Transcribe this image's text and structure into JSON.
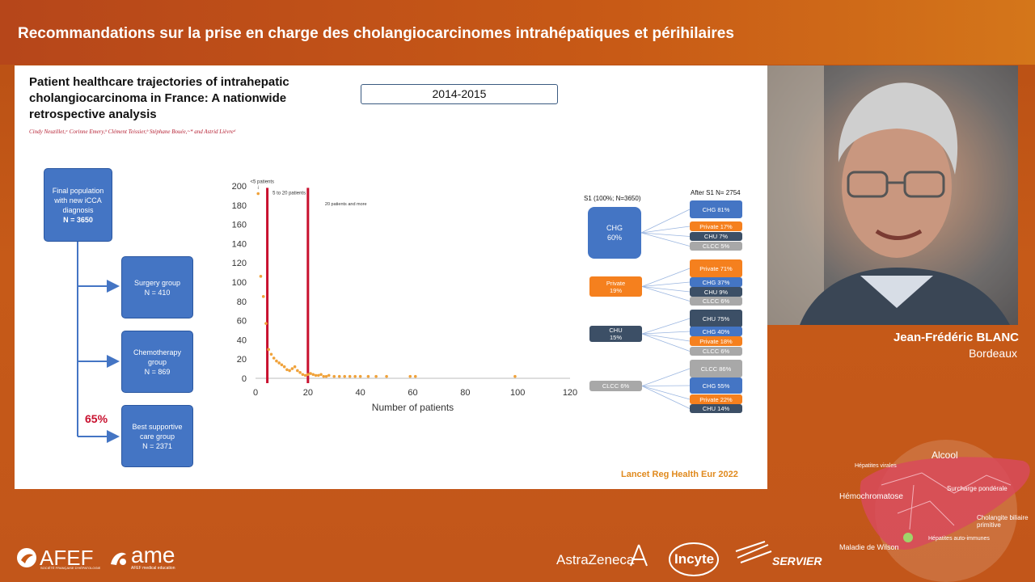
{
  "header": {
    "title": "Recommandations sur la prise en charge des cholangiocarcinomes intrahépatiques et périhilaires"
  },
  "slide": {
    "paper_title": "Patient healthcare trajectories of intrahepatic cholangiocarcinoma in France: A nationwide retrospective analysis",
    "authors": "Cindy Neuzillet,ᵃ Corinne Emery,ᵇ Clément Teissier,ᵇ Stéphane Bouée,ᶜ·* and Astrid Lièvreᵈ",
    "period": "2014-2015",
    "reference": "Lancet Reg Health Eur 2022",
    "flowchart": {
      "root": {
        "line1": "Final population",
        "line2": "with new iCCA",
        "line3": "diagnosis",
        "n": "N = 3650"
      },
      "groups": [
        {
          "name": "Surgery group",
          "n": "N = 410"
        },
        {
          "name": "Chemotherapy group",
          "n": "N = 869"
        },
        {
          "name": "Best supportive care group",
          "n": "N = 2371"
        }
      ],
      "bsc_percent": "65%"
    },
    "sankey": {
      "left_header": "S1 (100%; N=3650)",
      "right_header": "After S1 N= 2754",
      "sources": [
        {
          "name": "CHG",
          "pct": "60%",
          "targets": [
            {
              "label": "CHG 81%",
              "color": "#4475c4"
            },
            {
              "label": "Private 17%",
              "color": "#f5801e"
            },
            {
              "label": "CHU 7%",
              "color": "#3c4f66"
            },
            {
              "label": "CLCC   5%",
              "color": "#a8a8a8"
            }
          ]
        },
        {
          "name": "Private",
          "pct": "19%",
          "targets": [
            {
              "label": "Private 71%",
              "color": "#f5801e"
            },
            {
              "label": "CHG 37%",
              "color": "#4475c4"
            },
            {
              "label": "CHU 9%",
              "color": "#3c4f66"
            },
            {
              "label": "CLCC 6%",
              "color": "#a8a8a8"
            }
          ]
        },
        {
          "name": "CHU",
          "pct": "15%",
          "targets": [
            {
              "label": "CHU 75%",
              "color": "#3c4f66"
            },
            {
              "label": "CHG 40%",
              "color": "#4475c4"
            },
            {
              "label": "Private 18%",
              "color": "#f5801e"
            },
            {
              "label": "CLCC 6%",
              "color": "#a8a8a8"
            }
          ]
        },
        {
          "name": "CLCC 6%",
          "pct": "",
          "targets": [
            {
              "label": "CLCC 86%",
              "color": "#a8a8a8"
            },
            {
              "label": "CHG 55%",
              "color": "#4475c4"
            },
            {
              "label": "Private 22%",
              "color": "#f5801e"
            },
            {
              "label": "CHU 14%",
              "color": "#3c4f66"
            }
          ]
        }
      ]
    }
  },
  "chart_data": {
    "type": "scatter",
    "xlabel": "Number of patients",
    "ylabel": "",
    "xlim": [
      0,
      120
    ],
    "ylim": [
      0,
      200
    ],
    "xticks": [
      0,
      20,
      40,
      60,
      80,
      100,
      120
    ],
    "yticks": [
      0,
      20,
      40,
      60,
      80,
      100,
      120,
      140,
      160,
      180,
      200
    ],
    "color": "#f0a23a",
    "thresholds": [
      {
        "x": 4.5,
        "label": "<5 patients"
      },
      {
        "x": 20,
        "label": "5 to 20 patients"
      }
    ],
    "annotation": "20 patients and more",
    "points": [
      [
        1,
        192
      ],
      [
        2,
        106
      ],
      [
        3,
        85
      ],
      [
        4,
        57
      ],
      [
        5,
        30
      ],
      [
        6,
        25
      ],
      [
        7,
        21
      ],
      [
        8,
        18
      ],
      [
        9,
        16
      ],
      [
        10,
        14
      ],
      [
        11,
        12
      ],
      [
        12,
        9
      ],
      [
        13,
        8
      ],
      [
        14,
        10
      ],
      [
        15,
        12
      ],
      [
        16,
        8
      ],
      [
        17,
        6
      ],
      [
        18,
        4
      ],
      [
        19,
        3
      ],
      [
        20,
        4
      ],
      [
        21,
        5
      ],
      [
        22,
        4
      ],
      [
        23,
        3
      ],
      [
        24,
        3
      ],
      [
        25,
        4
      ],
      [
        26,
        2
      ],
      [
        27,
        2
      ],
      [
        28,
        3
      ],
      [
        30,
        2
      ],
      [
        32,
        2
      ],
      [
        34,
        2
      ],
      [
        36,
        2
      ],
      [
        38,
        2
      ],
      [
        40,
        2
      ],
      [
        43,
        2
      ],
      [
        46,
        2
      ],
      [
        50,
        2
      ],
      [
        59,
        2
      ],
      [
        61,
        2
      ],
      [
        99,
        2
      ]
    ]
  },
  "speaker": {
    "name": "Jean-Frédéric BLANC",
    "city": "Bordeaux"
  },
  "footer": {
    "afef": "AFEF",
    "afef_sub": "SOCIÉTÉ FRANÇAISE D'HÉPATOLOGIE",
    "ame": "ame",
    "ame_sub": "AFEF medical education",
    "sponsors": [
      "AstraZeneca",
      "Incyte",
      "SERVIER"
    ]
  },
  "liver_graphic": {
    "labels": [
      "Alcool",
      "Hépatites virales",
      "Hémochromatose",
      "Surcharge pondérale",
      "Cholangite biliaire primitive",
      "Hépatites auto-immunes",
      "Maladie de Wilson"
    ]
  }
}
